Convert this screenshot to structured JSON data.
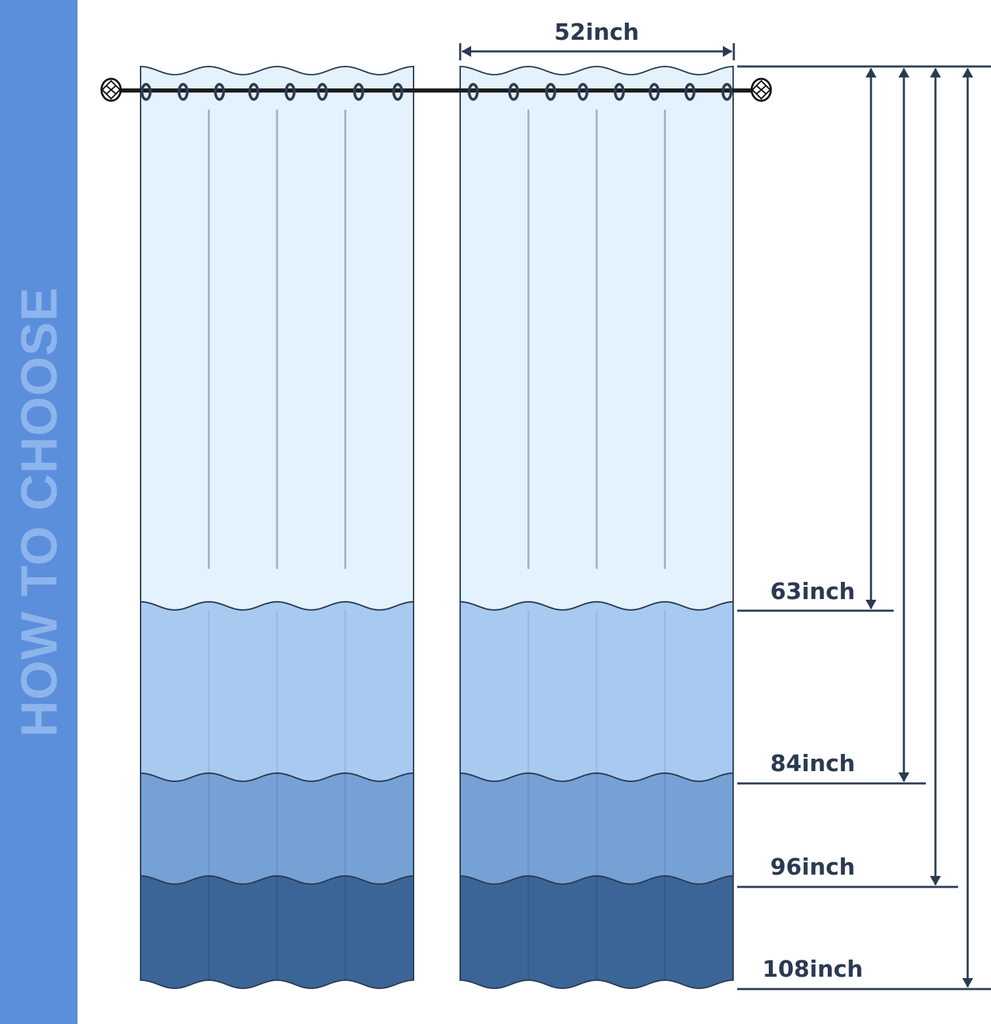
{
  "sidebar": {
    "title": "HOW TO CHOOSE",
    "color": "#5b8fdb"
  },
  "width_label": "52inch",
  "lengths": [
    {
      "label": "63inch"
    },
    {
      "label": "84inch"
    },
    {
      "label": "96inch"
    },
    {
      "label": "108inch"
    }
  ],
  "colors": {
    "band_1": "#e4f2fd",
    "band_2": "#a9caf0",
    "band_3": "#76a1d5",
    "band_4": "#3b6596",
    "outline": "#2b3d55",
    "dimension": "#2b3a52"
  }
}
